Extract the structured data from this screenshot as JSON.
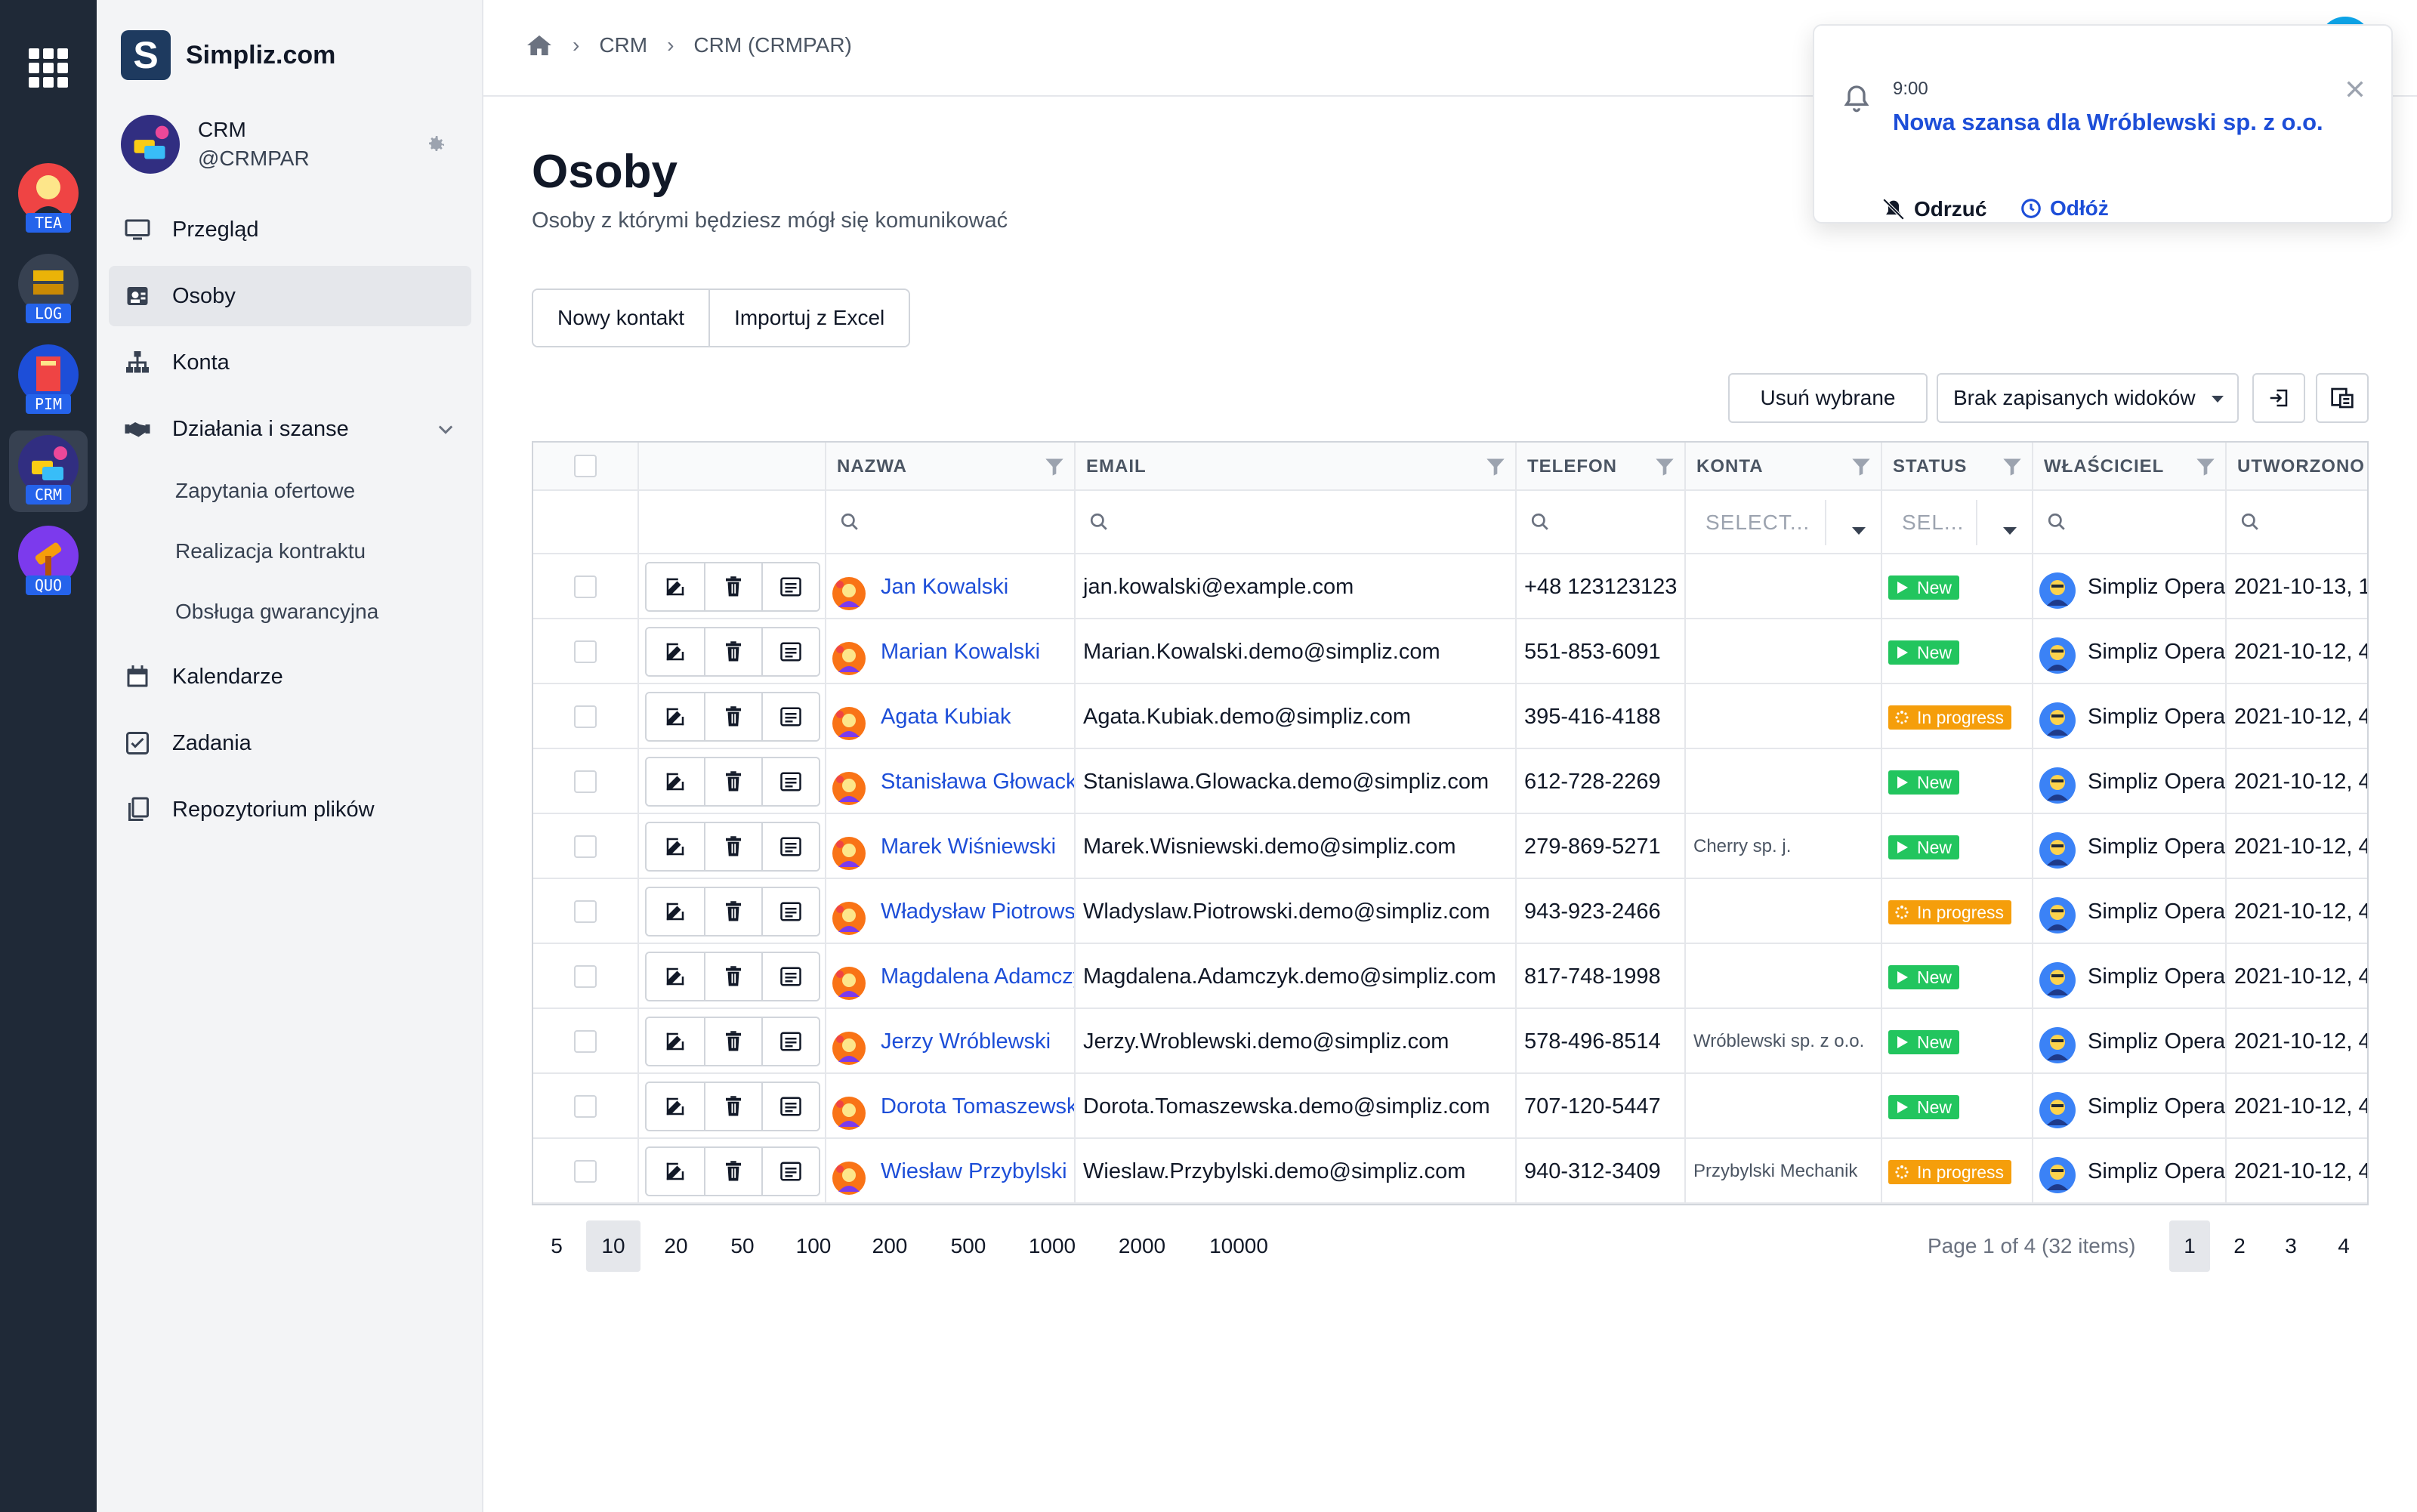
{
  "rail": {
    "apps": [
      {
        "label": "TEA",
        "color": "#ef4444"
      },
      {
        "label": "LOG",
        "color": "#374151"
      },
      {
        "label": "PIM",
        "color": "#1d4ed8"
      },
      {
        "label": "CRM",
        "color": "#312e81"
      },
      {
        "label": "QUO",
        "color": "#7c3aed"
      }
    ]
  },
  "brand": {
    "logo": "S",
    "name": "Simpliz.com"
  },
  "module": {
    "title": "CRM",
    "subtitle": "@CRMPAR"
  },
  "nav": {
    "items": [
      {
        "label": "Przegląd",
        "icon": "monitor-icon"
      },
      {
        "label": "Osoby",
        "icon": "contacts-icon"
      },
      {
        "label": "Konta",
        "icon": "hierarchy-icon"
      },
      {
        "label": "Działania i szanse",
        "icon": "handshake-icon"
      },
      {
        "label": "Kalendarze",
        "icon": "calendar-icon"
      },
      {
        "label": "Zadania",
        "icon": "checkbox-icon"
      },
      {
        "label": "Repozytorium plików",
        "icon": "files-icon"
      }
    ],
    "subitems": [
      "Zapytania ofertowe",
      "Realizacja kontraktu",
      "Obsługa gwarancyjna"
    ]
  },
  "breadcrumb": {
    "items": [
      "CRM",
      "CRM (CRMPAR)"
    ]
  },
  "page": {
    "title": "Osoby",
    "subtitle": "Osoby z którymi będziesz mógł się komunikować"
  },
  "actions": {
    "new_contact": "Nowy kontakt",
    "import_excel": "Importuj z Excel"
  },
  "toolbar": {
    "delete_selected": "Usuń wybrane",
    "saved_views": "Brak zapisanych widoków"
  },
  "table": {
    "columns": [
      "NAZWA",
      "EMAIL",
      "TELEFON",
      "KONTA",
      "STATUS",
      "WŁAŚCICIEL",
      "UTWORZONO"
    ],
    "filters": {
      "konta_placeholder": "SELECT...",
      "status_placeholder": "SEL..."
    },
    "rows": [
      {
        "name": "Jan Kowalski",
        "email": "jan.kowalski@example.com",
        "phone": "+48 123123123",
        "account": "",
        "status": "New",
        "owner": "Simpliz Opera",
        "created": "2021-10-13, 1"
      },
      {
        "name": "Marian Kowalski",
        "email": "Marian.Kowalski.demo@simpliz.com",
        "phone": "551-853-6091",
        "account": "",
        "status": "New",
        "owner": "Simpliz Opera",
        "created": "2021-10-12, 4"
      },
      {
        "name": "Agata Kubiak",
        "email": "Agata.Kubiak.demo@simpliz.com",
        "phone": "395-416-4188",
        "account": "",
        "status": "In progress",
        "owner": "Simpliz Opera",
        "created": "2021-10-12, 4"
      },
      {
        "name": "Stanisława Głowacka",
        "email": "Stanislawa.Glowacka.demo@simpliz.com",
        "phone": "612-728-2269",
        "account": "",
        "status": "New",
        "owner": "Simpliz Opera",
        "created": "2021-10-12, 4"
      },
      {
        "name": "Marek Wiśniewski",
        "email": "Marek.Wisniewski.demo@simpliz.com",
        "phone": "279-869-5271",
        "account": "Cherry sp. j.",
        "status": "New",
        "owner": "Simpliz Opera",
        "created": "2021-10-12, 4"
      },
      {
        "name": "Władysław Piotrowski",
        "email": "Wladyslaw.Piotrowski.demo@simpliz.com",
        "phone": "943-923-2466",
        "account": "",
        "status": "In progress",
        "owner": "Simpliz Opera",
        "created": "2021-10-12, 4"
      },
      {
        "name": "Magdalena Adamczyk",
        "email": "Magdalena.Adamczyk.demo@simpliz.com",
        "phone": "817-748-1998",
        "account": "",
        "status": "New",
        "owner": "Simpliz Opera",
        "created": "2021-10-12, 4"
      },
      {
        "name": "Jerzy Wróblewski",
        "email": "Jerzy.Wroblewski.demo@simpliz.com",
        "phone": "578-496-8514",
        "account": "Wróblewski sp. z o.o.",
        "status": "New",
        "owner": "Simpliz Opera",
        "created": "2021-10-12, 4"
      },
      {
        "name": "Dorota Tomaszewska",
        "email": "Dorota.Tomaszewska.demo@simpliz.com",
        "phone": "707-120-5447",
        "account": "",
        "status": "New",
        "owner": "Simpliz Opera",
        "created": "2021-10-12, 4"
      },
      {
        "name": "Wiesław Przybylski",
        "email": "Wieslaw.Przybylski.demo@simpliz.com",
        "phone": "940-312-3409",
        "account": "Przybylski Mechanik",
        "status": "In progress",
        "owner": "Simpliz Opera",
        "created": "2021-10-12, 4"
      }
    ]
  },
  "pagination": {
    "sizes": [
      "5",
      "10",
      "20",
      "50",
      "100",
      "200",
      "500",
      "1000",
      "2000",
      "10000"
    ],
    "selected_size": "10",
    "info": "Page 1 of 4 (32 items)",
    "pages": [
      "1",
      "2",
      "3",
      "4"
    ],
    "current_page": "1"
  },
  "notification": {
    "time": "9:00",
    "title": "Nowa szansa dla Wróblewski sp. z o.o.",
    "dismiss": "Odrzuć",
    "snooze": "Odłóż"
  },
  "colors": {
    "accent": "#1d4ed8",
    "new": "#22c55e",
    "in_progress": "#f59e0b",
    "rail": "#1f2937"
  }
}
